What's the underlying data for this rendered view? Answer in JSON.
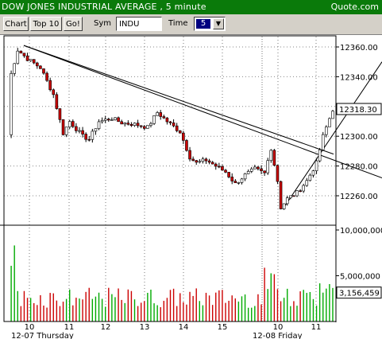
{
  "window": {
    "title": "DOW JONES INDUSTRIAL AVERAGE , 5 minute",
    "brand": "Quote.com"
  },
  "toolbar": {
    "chart_button": "Chart",
    "top10_button": "Top 10",
    "go_button": "Go!",
    "sym_label": "Sym",
    "sym_value": "INDU",
    "time_label": "Time",
    "time_value": "5"
  },
  "colors": {
    "titlebar": "#0a7a0a",
    "up_candle": "#ffffff",
    "down_candle": "#cc0000",
    "volume_green": "#00aa00",
    "volume_red": "#cc0000",
    "trendline": "#000000"
  },
  "chart_data": {
    "type": "candlestick",
    "y_axis": {
      "ticks": [
        "12360.00",
        "12340.00",
        "12320.00",
        "12300.00",
        "12280.00",
        "12260.00"
      ],
      "ylim": [
        12250,
        12365
      ]
    },
    "last_price": "12318.30",
    "volume_axis": {
      "ticks": [
        "10,000,000",
        "5,000,000"
      ],
      "last_volume": "3,156,459",
      "ylim": [
        0,
        10000000
      ]
    },
    "x_axis": {
      "hour_ticks": [
        "10",
        "11",
        "12",
        "13",
        "14",
        "15",
        "10",
        "11"
      ],
      "date_labels": [
        "12-07 Thursday",
        "12-08 Friday"
      ]
    },
    "series": [
      {
        "name": "price",
        "waypoints": [
          [
            0,
            12301
          ],
          [
            1,
            12342
          ],
          [
            3,
            12358
          ],
          [
            6,
            12352
          ],
          [
            10,
            12346
          ],
          [
            14,
            12328
          ],
          [
            17,
            12302
          ],
          [
            19,
            12310
          ],
          [
            23,
            12300
          ],
          [
            25,
            12298
          ],
          [
            28,
            12310
          ],
          [
            32,
            12312
          ],
          [
            35,
            12309
          ],
          [
            39,
            12308
          ],
          [
            43,
            12306
          ],
          [
            46,
            12316
          ],
          [
            49,
            12310
          ],
          [
            53,
            12303
          ],
          [
            56,
            12286
          ],
          [
            58,
            12282
          ],
          [
            61,
            12284
          ],
          [
            64,
            12280
          ],
          [
            67,
            12276
          ],
          [
            70,
            12268
          ],
          [
            73,
            12274
          ],
          [
            76,
            12278
          ],
          [
            79,
            12275
          ],
          [
            81,
            12292
          ],
          [
            83,
            12270
          ],
          [
            84,
            12252
          ],
          [
            86,
            12258
          ],
          [
            89,
            12262
          ],
          [
            92,
            12270
          ],
          [
            95,
            12282
          ],
          [
            97,
            12300
          ],
          [
            99,
            12312
          ],
          [
            100,
            12318
          ]
        ]
      }
    ]
  }
}
